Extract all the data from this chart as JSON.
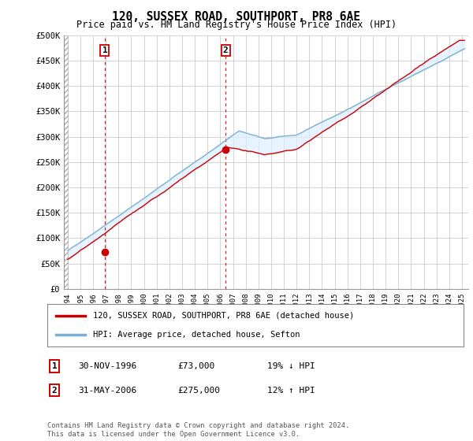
{
  "title": "120, SUSSEX ROAD, SOUTHPORT, PR8 6AE",
  "subtitle": "Price paid vs. HM Land Registry's House Price Index (HPI)",
  "ylabel_ticks": [
    "£0",
    "£50K",
    "£100K",
    "£150K",
    "£200K",
    "£250K",
    "£300K",
    "£350K",
    "£400K",
    "£450K",
    "£500K"
  ],
  "ytick_values": [
    0,
    50000,
    100000,
    150000,
    200000,
    250000,
    300000,
    350000,
    400000,
    450000,
    500000
  ],
  "ylim": [
    0,
    500000
  ],
  "xlim_start": 1993.7,
  "xlim_end": 2025.5,
  "hpi_color": "#7ab0d4",
  "price_color": "#cc0000",
  "shade_color": "#ddeeff",
  "sale1_x": 1996.917,
  "sale1_y": 73000,
  "sale2_x": 2006.417,
  "sale2_y": 275000,
  "legend_label1": "120, SUSSEX ROAD, SOUTHPORT, PR8 6AE (detached house)",
  "legend_label2": "HPI: Average price, detached house, Sefton",
  "table_row1_date": "30-NOV-1996",
  "table_row1_price": "£73,000",
  "table_row1_hpi": "19% ↓ HPI",
  "table_row2_date": "31-MAY-2006",
  "table_row2_price": "£275,000",
  "table_row2_hpi": "12% ↑ HPI",
  "footer": "Contains HM Land Registry data © Crown copyright and database right 2024.\nThis data is licensed under the Open Government Licence v3.0.",
  "background_color": "#ffffff",
  "grid_color": "#cccccc"
}
